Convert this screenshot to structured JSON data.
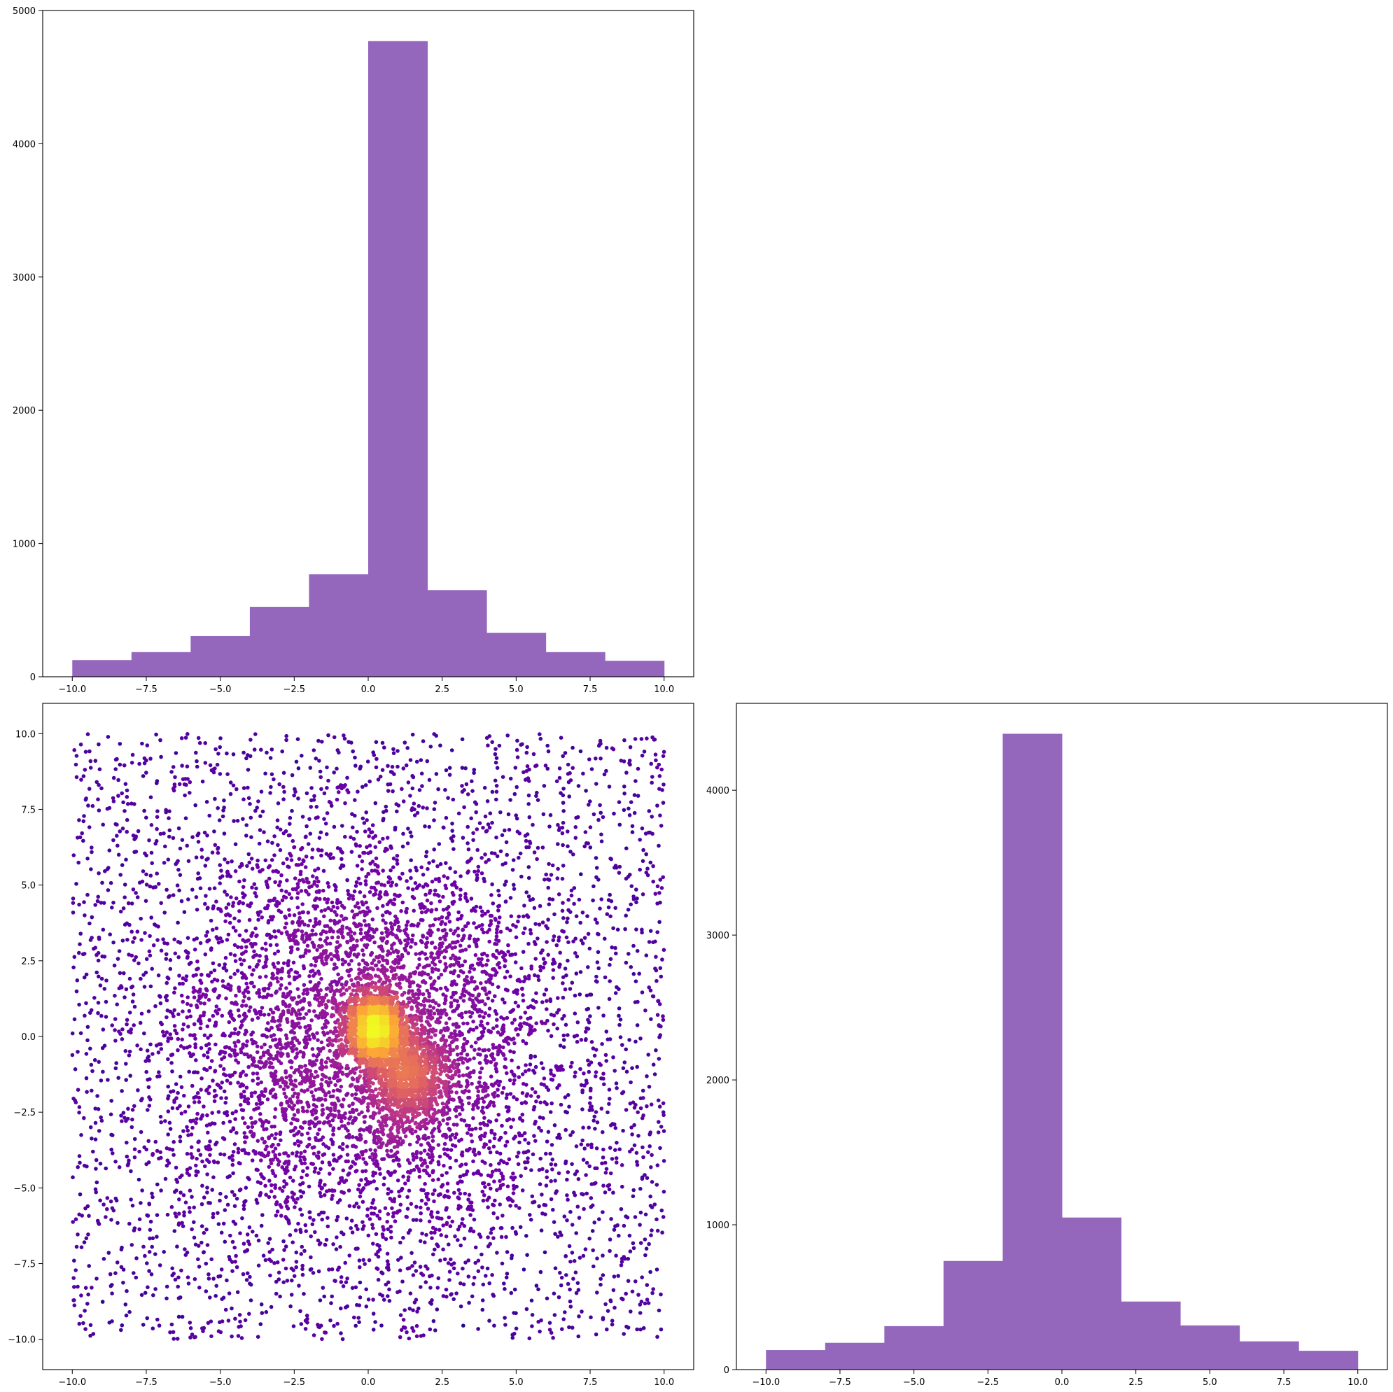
{
  "figure": {
    "background": "#ffffff",
    "layout": "2x2 corner plot, top-right empty"
  },
  "chart_data": [
    {
      "id": "hist-x",
      "position": "top-left",
      "type": "bar",
      "title": "",
      "xlabel": "",
      "ylabel": "",
      "color": "#9467bd",
      "bin_edges": [
        -10,
        -8,
        -6,
        -4,
        -2,
        0,
        2,
        4,
        6,
        8,
        10
      ],
      "values": [
        125,
        185,
        305,
        525,
        770,
        4770,
        650,
        330,
        185,
        120
      ],
      "xlim": [
        -11,
        11
      ],
      "ylim": [
        0,
        5000
      ],
      "xticks": [
        -10,
        -7.5,
        -5,
        -2.5,
        0,
        2.5,
        5,
        7.5,
        10
      ],
      "xtick_labels": [
        "−10.0",
        "−7.5",
        "−5.0",
        "−2.5",
        "0.0",
        "2.5",
        "5.0",
        "7.5",
        "10.0"
      ],
      "yticks": [
        0,
        1000,
        2000,
        3000,
        4000,
        5000
      ],
      "ytick_labels": [
        "0",
        "1000",
        "2000",
        "3000",
        "4000",
        "5000"
      ],
      "grid": false
    },
    {
      "id": "scatter-xy",
      "position": "bottom-left",
      "type": "scatter",
      "title": "",
      "xlabel": "",
      "ylabel": "",
      "colormap": "plasma",
      "color_encoding": "point density",
      "colormap_stops": [
        "#0d0887",
        "#6a00a8",
        "#b12a90",
        "#e16462",
        "#fca636",
        "#f0f921"
      ],
      "point_count": 10000,
      "components": [
        {
          "kind": "uniform",
          "fraction": 0.33,
          "xrange": [
            -10,
            10
          ],
          "yrange": [
            -10,
            10
          ]
        },
        {
          "kind": "gaussian",
          "fraction": 0.38,
          "mean": [
            0,
            0
          ],
          "sd": [
            3.2,
            3.2
          ]
        },
        {
          "kind": "gaussian",
          "fraction": 0.17,
          "mean": [
            0.2,
            0.3
          ],
          "sd": [
            0.45,
            0.55
          ]
        },
        {
          "kind": "gaussian",
          "fraction": 0.12,
          "mean": [
            1.3,
            -1.3
          ],
          "sd": [
            0.75,
            0.9
          ]
        }
      ],
      "xlim": [
        -11,
        11
      ],
      "ylim": [
        -11,
        11
      ],
      "xticks": [
        -10,
        -7.5,
        -5,
        -2.5,
        0,
        2.5,
        5,
        7.5,
        10
      ],
      "xtick_labels": [
        "−10.0",
        "−7.5",
        "−5.0",
        "−2.5",
        "0.0",
        "2.5",
        "5.0",
        "7.5",
        "10.0"
      ],
      "yticks": [
        -10,
        -7.5,
        -5,
        -2.5,
        0,
        2.5,
        5,
        7.5,
        10
      ],
      "ytick_labels": [
        "−10.0",
        "−7.5",
        "−5.0",
        "−2.5",
        "0.0",
        "2.5",
        "5.0",
        "7.5",
        "10.0"
      ],
      "grid": false
    },
    {
      "id": "hist-y",
      "position": "bottom-right",
      "type": "bar",
      "title": "",
      "xlabel": "",
      "ylabel": "",
      "color": "#9467bd",
      "bin_edges": [
        -10,
        -8,
        -6,
        -4,
        -2,
        0,
        2,
        4,
        6,
        8,
        10
      ],
      "values": [
        135,
        185,
        300,
        750,
        4390,
        1050,
        470,
        305,
        195,
        130
      ],
      "xlim": [
        -11,
        11
      ],
      "ylim": [
        0,
        4600
      ],
      "xticks": [
        -10,
        -7.5,
        -5,
        -2.5,
        0,
        2.5,
        5,
        7.5,
        10
      ],
      "xtick_labels": [
        "−10.0",
        "−7.5",
        "−5.0",
        "−2.5",
        "0.0",
        "2.5",
        "5.0",
        "7.5",
        "10.0"
      ],
      "yticks": [
        0,
        1000,
        2000,
        3000,
        4000
      ],
      "ytick_labels": [
        "0",
        "1000",
        "2000",
        "3000",
        "4000"
      ],
      "grid": false
    }
  ]
}
